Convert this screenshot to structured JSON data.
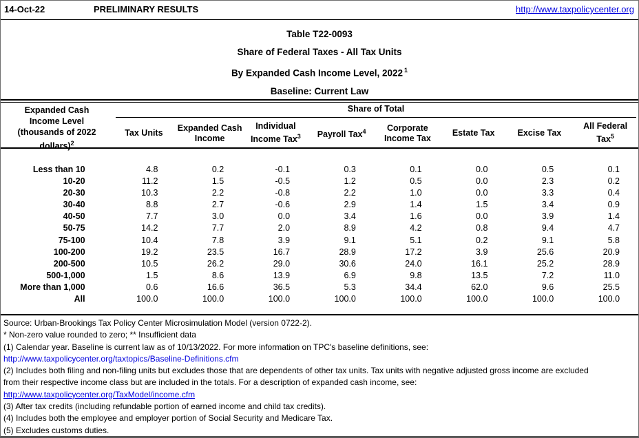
{
  "header": {
    "date": "14-Oct-22",
    "preliminary": "PRELIMINARY RESULTS",
    "url": "http://www.taxpolicycenter.org"
  },
  "title": {
    "line1": "Table T22-0093",
    "line2": "Share of Federal Taxes - All Tax Units",
    "line3": "By Expanded Cash Income Level, 2022",
    "line3_sup": "1",
    "line4": "Baseline: Current Law"
  },
  "table": {
    "stub_header": {
      "lines": [
        "Expanded Cash",
        "Income Level",
        "(thousands of 2022",
        "dollars)"
      ],
      "sup": "2"
    },
    "span_header": "Share of Total",
    "columns": [
      {
        "lines": [
          "Tax Units"
        ],
        "sup": ""
      },
      {
        "lines": [
          "Expanded Cash",
          "Income"
        ],
        "sup": ""
      },
      {
        "lines": [
          "Individual",
          "Income Tax"
        ],
        "sup": "3"
      },
      {
        "lines": [
          "Payroll Tax"
        ],
        "sup": "4"
      },
      {
        "lines": [
          "Corporate",
          "Income Tax"
        ],
        "sup": ""
      },
      {
        "lines": [
          "Estate Tax"
        ],
        "sup": ""
      },
      {
        "lines": [
          "Excise Tax"
        ],
        "sup": ""
      },
      {
        "lines": [
          "All Federal",
          "Tax"
        ],
        "sup": "5"
      }
    ],
    "rows": [
      {
        "label": "Less than 10",
        "values": [
          "4.8",
          "0.2",
          "-0.1",
          "0.3",
          "0.1",
          "0.0",
          "0.5",
          "0.1"
        ]
      },
      {
        "label": "10-20",
        "values": [
          "11.2",
          "1.5",
          "-0.5",
          "1.2",
          "0.5",
          "0.0",
          "2.3",
          "0.2"
        ]
      },
      {
        "label": "20-30",
        "values": [
          "10.3",
          "2.2",
          "-0.8",
          "2.2",
          "1.0",
          "0.0",
          "3.3",
          "0.4"
        ]
      },
      {
        "label": "30-40",
        "values": [
          "8.8",
          "2.7",
          "-0.6",
          "2.9",
          "1.4",
          "1.5",
          "3.4",
          "0.9"
        ]
      },
      {
        "label": "40-50",
        "values": [
          "7.7",
          "3.0",
          "0.0",
          "3.4",
          "1.6",
          "0.0",
          "3.9",
          "1.4"
        ]
      },
      {
        "label": "50-75",
        "values": [
          "14.2",
          "7.7",
          "2.0",
          "8.9",
          "4.2",
          "0.8",
          "9.4",
          "4.7"
        ]
      },
      {
        "label": "75-100",
        "values": [
          "10.4",
          "7.8",
          "3.9",
          "9.1",
          "5.1",
          "0.2",
          "9.1",
          "5.8"
        ]
      },
      {
        "label": "100-200",
        "values": [
          "19.2",
          "23.5",
          "16.7",
          "28.9",
          "17.2",
          "3.9",
          "25.6",
          "20.9"
        ]
      },
      {
        "label": "200-500",
        "values": [
          "10.5",
          "26.2",
          "29.0",
          "30.6",
          "24.0",
          "16.1",
          "25.2",
          "28.9"
        ]
      },
      {
        "label": "500-1,000",
        "values": [
          "1.5",
          "8.6",
          "13.9",
          "6.9",
          "9.8",
          "13.5",
          "7.2",
          "11.0"
        ]
      },
      {
        "label": "More than 1,000",
        "values": [
          "0.6",
          "16.6",
          "36.5",
          "5.3",
          "34.4",
          "62.0",
          "9.6",
          "25.5"
        ]
      },
      {
        "label": "All",
        "values": [
          "100.0",
          "100.0",
          "100.0",
          "100.0",
          "100.0",
          "100.0",
          "100.0",
          "100.0"
        ]
      }
    ]
  },
  "footnotes": {
    "lines": [
      {
        "type": "text",
        "text": "Source: Urban-Brookings Tax Policy Center Microsimulation Model (version 0722-2)."
      },
      {
        "type": "text",
        "text": "* Non-zero value rounded to zero; ** Insufficient data"
      },
      {
        "type": "text",
        "text": "(1) Calendar year. Baseline is current law as of 10/13/2022. For more information on TPC's baseline definitions, see:"
      },
      {
        "type": "link",
        "text": "http://www.taxpolicycenter.org/taxtopics/Baseline-Definitions.cfm"
      },
      {
        "type": "text",
        "text": "(2) Includes both filing and non-filing units but excludes those that are dependents of other tax units. Tax units with negative adjusted gross income are excluded"
      },
      {
        "type": "text",
        "text": "from their respective income class but are included in the totals. For a description of expanded cash income, see:"
      },
      {
        "type": "link-underline",
        "text": "http://www.taxpolicycenter.org/TaxModel/income.cfm"
      },
      {
        "type": "text",
        "text": "(3) After tax credits (including refundable portion of earned income and child tax credits)."
      },
      {
        "type": "text",
        "text": "(4) Includes both the employee and employer portion of Social Security and Medicare Tax."
      },
      {
        "type": "text",
        "text": "(5) Excludes customs duties."
      }
    ]
  },
  "colors": {
    "link": "#0000de",
    "border": "#000000",
    "outer_border": "#6e6e6e"
  }
}
